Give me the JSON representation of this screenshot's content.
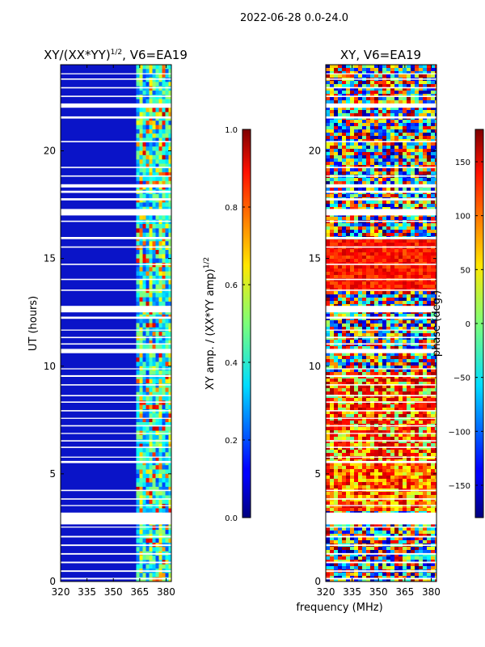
{
  "figure": {
    "title": "2022-06-28 0.0-24.0",
    "xlabel": "frequency (MHz)"
  },
  "panels": {
    "amp": {
      "title_main": "XY/(XX*YY)",
      "title_exp": "1/2",
      "title_suffix": ", V6=EA19",
      "ylabel": "UT (hours)",
      "cbar_label": "XY amp. / (XX*YY amp)",
      "cbar_label_exp": "1/2"
    },
    "phase": {
      "title": "XY, V6=EA19",
      "cbar_label": "phase (deg.)"
    }
  },
  "chart_data": [
    {
      "type": "heatmap",
      "name": "amplitude-ratio",
      "title": "XY/(XX*YY)^1/2, V6=EA19",
      "xlabel": "frequency (MHz)",
      "ylabel": "UT (hours)",
      "xlim": [
        320,
        383
      ],
      "ylim": [
        0,
        24
      ],
      "xticks": [
        320,
        335,
        350,
        365,
        380
      ],
      "yticks": [
        0,
        5,
        10,
        15,
        20
      ],
      "colorbar": {
        "label": "XY amp. / (XX*YY amp)^1/2",
        "range": [
          0.0,
          1.0
        ],
        "ticks": [
          "0.0",
          "0.2",
          "0.4",
          "0.6",
          "0.8",
          "1.0"
        ]
      },
      "bright_channel_start_mhz": 363
    },
    {
      "type": "heatmap",
      "name": "phase",
      "title": "XY, V6=EA19",
      "xlabel": "frequency (MHz)",
      "xlim": [
        320,
        383
      ],
      "ylim": [
        0,
        24
      ],
      "xticks": [
        320,
        335,
        350,
        365,
        380
      ],
      "yticks": [
        0,
        5,
        10,
        15,
        20
      ],
      "colorbar": {
        "label": "phase (deg.)",
        "range": [
          -180,
          180
        ],
        "ticks": [
          "-150",
          "-100",
          "-50",
          "0",
          "50",
          "100",
          "150"
        ]
      }
    }
  ],
  "gaps_ut_hours": [
    [
      0.1,
      0.17
    ],
    [
      0.45,
      0.52
    ],
    [
      0.85,
      0.92
    ],
    [
      1.25,
      1.32
    ],
    [
      1.65,
      1.72
    ],
    [
      2.05,
      2.12
    ],
    [
      2.5,
      2.55
    ],
    [
      2.65,
      3.2
    ],
    [
      3.5,
      3.55
    ],
    [
      3.8,
      3.86
    ],
    [
      4.2,
      4.26
    ],
    [
      5.5,
      5.6
    ],
    [
      5.75,
      5.8
    ],
    [
      6.2,
      6.26
    ],
    [
      6.5,
      6.56
    ],
    [
      6.85,
      6.9
    ],
    [
      7.2,
      7.26
    ],
    [
      7.55,
      7.6
    ],
    [
      7.9,
      7.96
    ],
    [
      8.3,
      8.36
    ],
    [
      8.6,
      8.66
    ],
    [
      9.1,
      9.16
    ],
    [
      9.5,
      9.58
    ],
    [
      9.85,
      9.9
    ],
    [
      10.6,
      10.8
    ],
    [
      11.0,
      11.06
    ],
    [
      11.3,
      11.36
    ],
    [
      11.65,
      11.7
    ],
    [
      12.2,
      12.3
    ],
    [
      12.5,
      12.8
    ],
    [
      13.5,
      13.56
    ],
    [
      14.0,
      14.06
    ],
    [
      14.7,
      14.76
    ],
    [
      15.5,
      15.56
    ],
    [
      15.9,
      16.0
    ],
    [
      16.7,
      16.76
    ],
    [
      17.0,
      17.3
    ],
    [
      17.7,
      17.8
    ],
    [
      18.05,
      18.15
    ],
    [
      18.3,
      18.45
    ],
    [
      18.8,
      18.86
    ],
    [
      19.2,
      19.26
    ],
    [
      20.4,
      20.46
    ],
    [
      21.5,
      21.6
    ],
    [
      22.0,
      22.2
    ],
    [
      22.5,
      22.56
    ],
    [
      22.9,
      22.96
    ],
    [
      23.3,
      23.36
    ],
    [
      23.55,
      23.6
    ]
  ]
}
